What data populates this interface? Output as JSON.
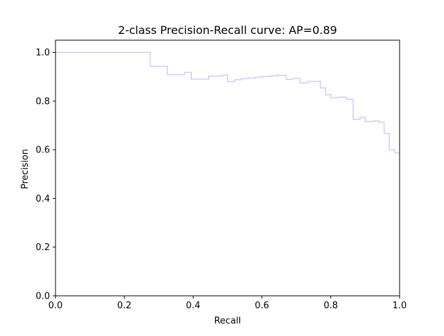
{
  "chart_data": {
    "type": "line",
    "step": "post",
    "title": "2-class Precision-Recall curve: AP=0.89",
    "xlabel": "Recall",
    "ylabel": "Precision",
    "xlim": [
      0.0,
      1.0
    ],
    "ylim": [
      0.0,
      1.05
    ],
    "xticks": [
      0.0,
      0.2,
      0.4,
      0.6,
      0.8,
      1.0
    ],
    "xtick_labels": [
      "0.0",
      "0.2",
      "0.4",
      "0.6",
      "0.8",
      "1.0"
    ],
    "yticks": [
      0.0,
      0.2,
      0.4,
      0.6,
      0.8,
      1.0
    ],
    "ytick_labels": [
      "0.0",
      "0.2",
      "0.4",
      "0.6",
      "0.8",
      "1.0"
    ],
    "grid": false,
    "legend": "none",
    "line_color": "#ccccff",
    "series": [
      {
        "recall": [
          0.0,
          0.275,
          0.275,
          0.325,
          0.325,
          0.375,
          0.375,
          0.395,
          0.395,
          0.445,
          0.445,
          0.485,
          0.485,
          0.5,
          0.5,
          0.52,
          0.52,
          0.54,
          0.54,
          0.56,
          0.56,
          0.58,
          0.58,
          0.6,
          0.6,
          0.625,
          0.625,
          0.645,
          0.645,
          0.67,
          0.67,
          0.69,
          0.69,
          0.71,
          0.71,
          0.735,
          0.735,
          0.77,
          0.77,
          0.785,
          0.785,
          0.8,
          0.8,
          0.82,
          0.82,
          0.845,
          0.845,
          0.865,
          0.865,
          0.885,
          0.885,
          0.9,
          0.9,
          0.925,
          0.925,
          0.94,
          0.94,
          0.955,
          0.955,
          0.97,
          0.97,
          0.985,
          0.985,
          1.0
        ],
        "precision": [
          1.0,
          1.0,
          0.943,
          0.943,
          0.908,
          0.908,
          0.918,
          0.918,
          0.89,
          0.89,
          0.902,
          0.902,
          0.907,
          0.907,
          0.88,
          0.88,
          0.887,
          0.887,
          0.892,
          0.892,
          0.895,
          0.895,
          0.898,
          0.898,
          0.901,
          0.901,
          0.903,
          0.903,
          0.906,
          0.906,
          0.889,
          0.889,
          0.893,
          0.893,
          0.875,
          0.875,
          0.881,
          0.881,
          0.854,
          0.854,
          0.826,
          0.826,
          0.813,
          0.813,
          0.816,
          0.816,
          0.807,
          0.807,
          0.725,
          0.725,
          0.733,
          0.733,
          0.716,
          0.716,
          0.719,
          0.719,
          0.713,
          0.713,
          0.667,
          0.667,
          0.6,
          0.6,
          0.587,
          0.587
        ]
      }
    ]
  }
}
